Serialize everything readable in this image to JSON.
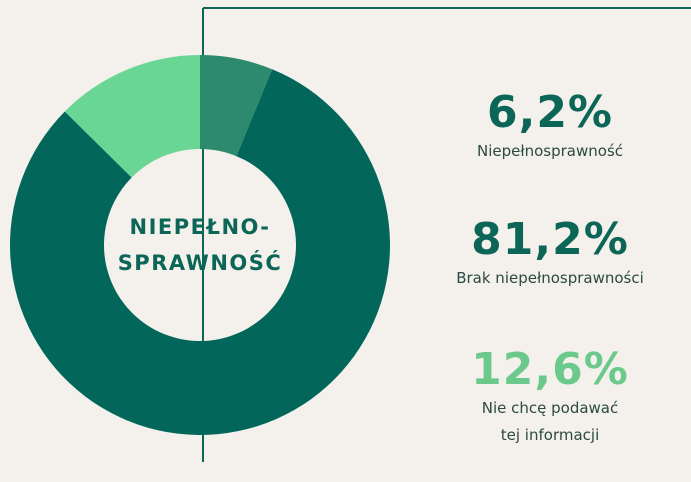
{
  "chart_data": {
    "type": "donut",
    "center_label": [
      "NIEPEŁNO-",
      "SPRAWNOŚĆ"
    ],
    "categories": [
      "Niepełnosprawność",
      "Brak niepełnosprawności",
      "Nie chcę podawać tej informacji"
    ],
    "values": [
      6.2,
      81.2,
      12.6
    ],
    "value_labels": [
      "6,2%",
      "81,2%",
      "12,6%"
    ],
    "colors": [
      "#2e8a6c",
      "#02665a",
      "#6ad696"
    ],
    "label_colors": [
      "#0b6657",
      "#0b6657",
      "#6cc98c"
    ]
  }
}
